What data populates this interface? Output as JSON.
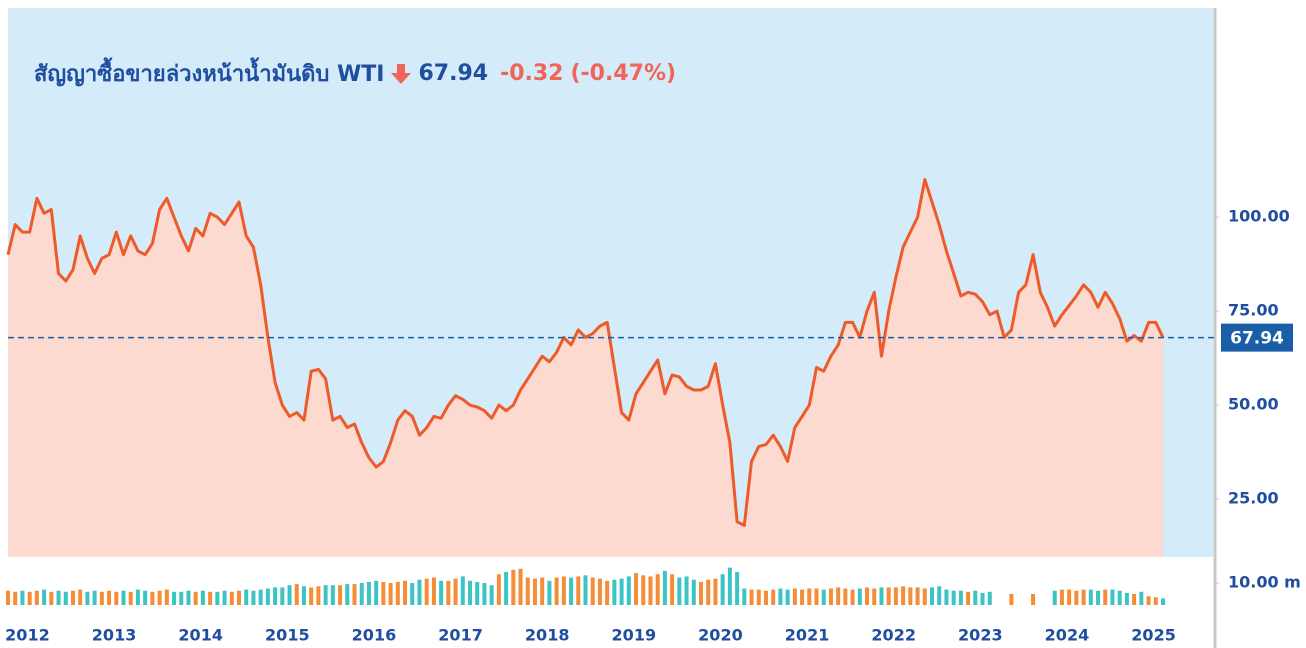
{
  "chart_data": {
    "type": "line",
    "title": "สัญญาซื้อขายล่วงหน้าน้ำมันดิบ WTI",
    "price": 67.94,
    "change": -0.32,
    "change_percent": {
      "value": -0.47,
      "label": "(-0.47%)"
    },
    "color": "#ee5a2a",
    "fill_color": "#fcdad0",
    "background": "#d4ecf9",
    "price_line_color": "#1a5ea8",
    "ylim": [
      9.6,
      155.6
    ],
    "yticks": [
      {
        "value": 25,
        "label": "25.00"
      },
      {
        "value": 50,
        "label": "50.00"
      },
      {
        "value": 75,
        "label": "75.00"
      },
      {
        "value": 100,
        "label": "100.00"
      }
    ],
    "categories": [
      null,
      null,
      "2012",
      null,
      null,
      null,
      null,
      null,
      null,
      null,
      null,
      null,
      null,
      null,
      "2013",
      null,
      null,
      null,
      null,
      null,
      null,
      null,
      null,
      null,
      null,
      null,
      "2014",
      null,
      null,
      null,
      null,
      null,
      null,
      null,
      null,
      null,
      null,
      null,
      "2015",
      null,
      null,
      null,
      null,
      null,
      null,
      null,
      null,
      null,
      null,
      null,
      "2016",
      null,
      null,
      null,
      null,
      null,
      null,
      null,
      null,
      null,
      null,
      null,
      "2017",
      null,
      null,
      null,
      null,
      null,
      null,
      null,
      null,
      null,
      null,
      null,
      "2018",
      null,
      null,
      null,
      null,
      null,
      null,
      null,
      null,
      null,
      null,
      null,
      "2019",
      null,
      null,
      null,
      null,
      null,
      null,
      null,
      null,
      null,
      null,
      null,
      "2020",
      null,
      null,
      null,
      null,
      null,
      null,
      null,
      null,
      null,
      null,
      null,
      "2021",
      null,
      null,
      null,
      null,
      null,
      null,
      null,
      null,
      null,
      null,
      null,
      "2022",
      null,
      null,
      null,
      null,
      null,
      null,
      null,
      null,
      null,
      null,
      null,
      "2023",
      null,
      null,
      null,
      null,
      null,
      null,
      null,
      null,
      null,
      null,
      null,
      "2024",
      null,
      null,
      null,
      null,
      null,
      null,
      null,
      null,
      null,
      null,
      null,
      "2025",
      null,
      null
    ],
    "values": [
      90,
      98,
      96,
      96,
      105,
      101,
      102,
      85,
      83,
      86,
      95,
      89,
      85,
      89,
      90,
      96,
      90,
      95,
      91,
      90,
      93,
      102,
      105,
      100,
      95,
      91,
      97,
      95,
      101,
      100,
      98,
      101,
      104,
      95,
      92,
      82,
      68,
      56,
      50,
      47,
      48,
      46,
      59,
      59.5,
      57,
      46,
      47,
      44,
      45,
      40,
      36,
      33.5,
      35,
      40,
      46,
      48.5,
      47,
      42,
      44,
      47,
      46.5,
      50,
      52.5,
      51.5,
      50,
      49.5,
      48.5,
      46.5,
      50,
      48.5,
      50,
      54,
      57,
      60,
      63,
      61.5,
      64,
      68,
      66,
      70,
      68,
      69,
      71,
      72,
      60,
      48,
      46,
      53,
      56,
      59,
      62,
      53,
      58,
      57.5,
      55,
      54,
      54,
      55,
      61,
      50,
      40,
      19,
      18,
      35,
      39,
      39.5,
      42,
      39,
      35,
      44,
      47,
      50,
      60,
      59,
      63,
      66,
      72,
      72,
      68,
      75,
      80,
      63,
      75,
      84,
      92,
      96,
      100,
      110,
      104,
      98,
      91,
      85,
      79,
      80,
      79.5,
      77.5,
      74,
      75,
      68,
      70,
      80,
      82,
      90,
      80,
      76,
      71,
      74,
      76.5,
      79,
      82,
      80,
      76,
      80,
      77,
      73,
      67,
      68.5,
      67,
      72,
      72,
      67.94
    ],
    "volume": {
      "up_color": "#f58c36",
      "down_color": "#3cc4c4",
      "ylim": [
        0,
        18.2
      ],
      "yticks": [
        {
          "value": 10,
          "label": "10.00 m"
        }
      ],
      "values": [
        6.5,
        6,
        6.5,
        6,
        6.5,
        7,
        6,
        6.5,
        6,
        6.5,
        7,
        6,
        6.5,
        6,
        6.5,
        6,
        6.5,
        6,
        7,
        6.5,
        6,
        6.5,
        7,
        6,
        6,
        6.5,
        6,
        6.5,
        6,
        6,
        6.5,
        6,
        6.5,
        7,
        6.5,
        7,
        7.5,
        8,
        8,
        9,
        9.5,
        8.5,
        8,
        8.5,
        9,
        9,
        9,
        9.5,
        9.5,
        10,
        10.5,
        11,
        10.5,
        10,
        10.5,
        11,
        10,
        11.5,
        12,
        12.5,
        11,
        11,
        12,
        13,
        11,
        10.5,
        10,
        9,
        14,
        15,
        16,
        16.5,
        12.5,
        12,
        12.5,
        11,
        12.5,
        13,
        12.5,
        13,
        13.5,
        12.5,
        12,
        11,
        11.5,
        12,
        13,
        14.5,
        13.5,
        13,
        14,
        15.5,
        14,
        12.5,
        13,
        11.5,
        10.5,
        11.5,
        12,
        14,
        17,
        15,
        7.5,
        7,
        7,
        6.5,
        7,
        7.5,
        7,
        7.5,
        7,
        7.5,
        7.5,
        7,
        7.5,
        8,
        7.5,
        7,
        7.5,
        8,
        7.5,
        8,
        8,
        8,
        8.5,
        8,
        8,
        7.5,
        8,
        8.5,
        7,
        6.5,
        6.5,
        6,
        6.5,
        5.5,
        6,
        null,
        null,
        5,
        null,
        null,
        5,
        null,
        null,
        6.5,
        7,
        7,
        6.5,
        7,
        7,
        6.5,
        7,
        7,
        6.5,
        5.5,
        5,
        6,
        4,
        3.5,
        3
      ]
    }
  }
}
